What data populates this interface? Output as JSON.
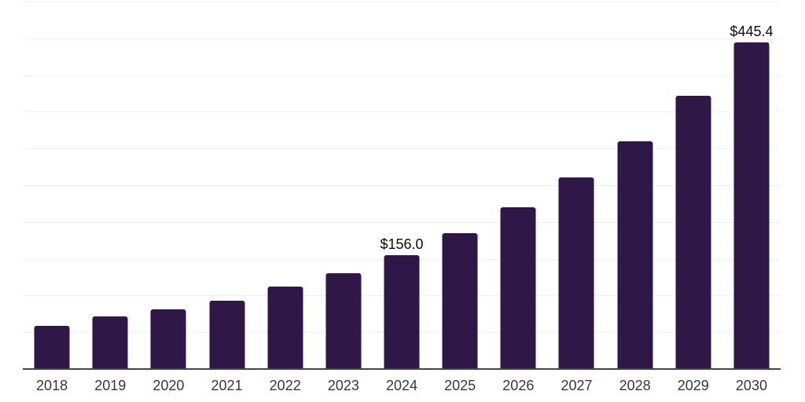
{
  "chart_data": {
    "type": "bar",
    "title": "",
    "xlabel": "",
    "ylabel": "",
    "categories": [
      "2018",
      "2019",
      "2020",
      "2021",
      "2022",
      "2023",
      "2024",
      "2025",
      "2026",
      "2027",
      "2028",
      "2029",
      "2030"
    ],
    "values": [
      59.4,
      72.2,
      82.8,
      94.4,
      113.6,
      131.6,
      156.0,
      185.8,
      220.9,
      262.1,
      311.0,
      372.5,
      445.4
    ],
    "data_labels": [
      {
        "category": "2024",
        "text": "$156.0"
      },
      {
        "category": "2030",
        "text": "$445.4"
      }
    ],
    "ylim": [
      0,
      500
    ],
    "grid_step": 50,
    "grid": true,
    "legend": false,
    "y_tick_labels_shown": false,
    "colors": {
      "bar": "#2f1747",
      "grid_line": "#efefef",
      "axis_line": "#454545",
      "tick_label": "#383838",
      "data_label": "#0a0a0a",
      "background": "#ffffff"
    }
  }
}
